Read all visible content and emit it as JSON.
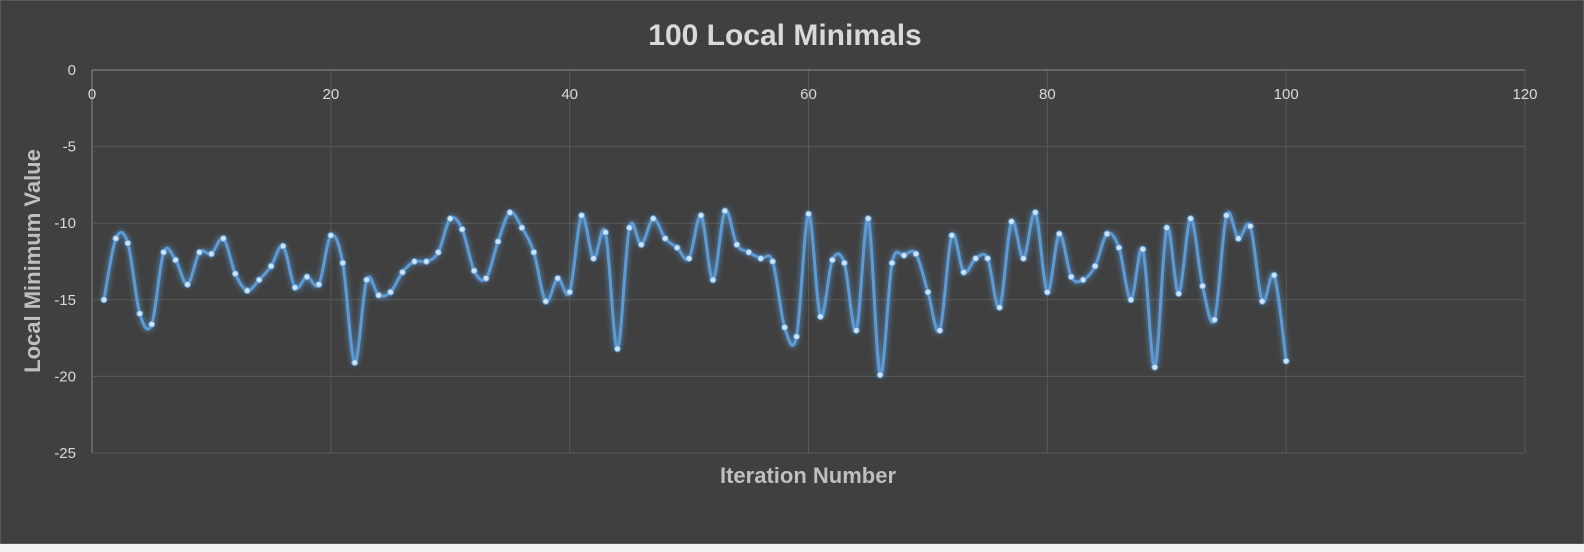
{
  "chart_data": {
    "type": "scatter",
    "title": "100 Local Minimals",
    "xlabel": "Iteration Number",
    "ylabel": "Local Minimum Value",
    "xlim": [
      0,
      120
    ],
    "ylim": [
      -25,
      0
    ],
    "x_ticks": [
      "0",
      "20",
      "40",
      "60",
      "80",
      "100",
      "120"
    ],
    "y_ticks": [
      "0",
      "-5",
      "-10",
      "-15",
      "-20",
      "-25"
    ],
    "grid": true,
    "legend": "none",
    "series_color": "#5b9bd5",
    "background_color": "#404040",
    "series": [
      {
        "x": [
          1,
          2,
          3,
          4,
          5,
          6,
          7,
          8,
          9,
          10,
          11,
          12,
          13,
          14,
          15,
          16,
          17,
          18,
          19,
          20,
          21,
          22,
          23,
          24,
          25,
          26,
          27,
          28,
          29,
          30,
          31,
          32,
          33,
          34,
          35,
          36,
          37,
          38,
          39,
          40,
          41,
          42,
          43,
          44,
          45,
          46,
          47,
          48,
          49,
          50,
          51,
          52,
          53,
          54,
          55,
          56,
          57,
          58,
          59,
          60,
          61,
          62,
          63,
          64,
          65,
          66,
          67,
          68,
          69,
          70,
          71,
          72,
          73,
          74,
          75,
          76,
          77,
          78,
          79,
          80,
          81,
          82,
          83,
          84,
          85,
          86,
          87,
          88,
          89,
          90,
          91,
          92,
          93,
          94,
          95,
          96,
          97,
          98,
          99,
          100
        ],
        "values": [
          -15.0,
          -11.0,
          -11.3,
          -15.9,
          -16.6,
          -11.9,
          -12.4,
          -14.0,
          -11.9,
          -12.0,
          -11.0,
          -13.3,
          -14.4,
          -13.7,
          -12.8,
          -11.5,
          -14.2,
          -13.5,
          -14.0,
          -10.8,
          -12.6,
          -19.1,
          -13.7,
          -14.7,
          -14.5,
          -13.2,
          -12.5,
          -12.5,
          -11.9,
          -9.7,
          -10.4,
          -13.1,
          -13.6,
          -11.2,
          -9.3,
          -10.3,
          -11.9,
          -15.1,
          -13.6,
          -14.5,
          -9.5,
          -12.3,
          -10.6,
          -18.2,
          -10.3,
          -11.4,
          -9.7,
          -11.0,
          -11.6,
          -12.3,
          -9.5,
          -13.7,
          -9.2,
          -11.4,
          -11.9,
          -12.3,
          -12.5,
          -16.8,
          -17.4,
          -9.4,
          -16.1,
          -12.4,
          -12.6,
          -17.0,
          -9.7,
          -19.9,
          -12.6,
          -12.1,
          -12.0,
          -14.5,
          -17.0,
          -10.8,
          -13.2,
          -12.3,
          -12.3,
          -15.5,
          -9.9,
          -12.3,
          -9.3,
          -14.5,
          -10.7,
          -13.5,
          -13.7,
          -12.8,
          -10.7,
          -11.6,
          -15.0,
          -11.7,
          -19.4,
          -10.3,
          -14.6,
          -9.7,
          -14.1,
          -16.3,
          -9.5,
          -11.0,
          -10.2,
          -15.1,
          -13.4,
          -19.0
        ]
      }
    ]
  }
}
